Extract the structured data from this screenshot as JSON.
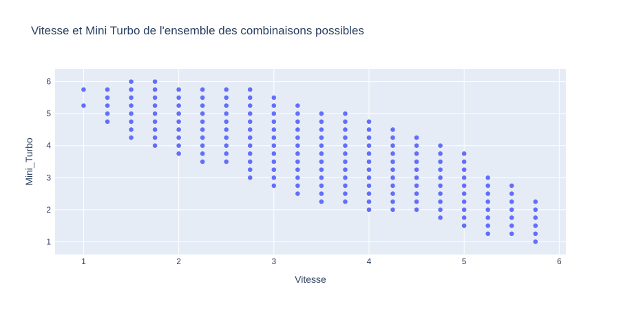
{
  "colors": {
    "plot_background": "#e5ecf6",
    "grid": "#ffffff",
    "marker": "#636efa",
    "text": "#2a3f5f",
    "title": "#2a3f5f"
  },
  "chart_data": {
    "type": "scatter",
    "title": "Vitesse et Mini Turbo de l'ensemble des combinaisons possibles",
    "xlabel": "Vitesse",
    "ylabel": "Mini_Turbo",
    "xlim": [
      0.7,
      6.07
    ],
    "ylim": [
      0.6,
      6.4
    ],
    "xticks": [
      1,
      2,
      3,
      4,
      5,
      6
    ],
    "yticks": [
      1,
      2,
      3,
      4,
      5,
      6
    ],
    "grid": true,
    "legend": "none",
    "marker_color": "#636efa",
    "columns": [
      {
        "x": 1,
        "y_min": 5.25,
        "y_max": 5.75,
        "y_values": [
          5.25,
          5.75
        ]
      },
      {
        "x": 1.25,
        "y_min": 4.75,
        "y_max": 5.75
      },
      {
        "x": 1.5,
        "y_min": 4.25,
        "y_max": 6
      },
      {
        "x": 1.75,
        "y_min": 4,
        "y_max": 6
      },
      {
        "x": 2,
        "y_min": 3.75,
        "y_max": 5.75
      },
      {
        "x": 2.25,
        "y_min": 3.5,
        "y_max": 5.75
      },
      {
        "x": 2.5,
        "y_min": 3.5,
        "y_max": 5.75
      },
      {
        "x": 2.75,
        "y_min": 3,
        "y_max": 5.75
      },
      {
        "x": 3,
        "y_min": 2.75,
        "y_max": 5.5
      },
      {
        "x": 3.25,
        "y_min": 2.5,
        "y_max": 5.25
      },
      {
        "x": 3.5,
        "y_min": 2.25,
        "y_max": 5
      },
      {
        "x": 3.75,
        "y_min": 2.25,
        "y_max": 5
      },
      {
        "x": 4,
        "y_min": 2,
        "y_max": 4.75
      },
      {
        "x": 4.25,
        "y_min": 2,
        "y_max": 4.5
      },
      {
        "x": 4.5,
        "y_min": 2,
        "y_max": 4.25
      },
      {
        "x": 4.75,
        "y_min": 1.75,
        "y_max": 4
      },
      {
        "x": 5,
        "y_min": 1.5,
        "y_max": 3.75
      },
      {
        "x": 5.25,
        "y_min": 1.25,
        "y_max": 3
      },
      {
        "x": 5.5,
        "y_min": 1.25,
        "y_max": 2.75
      },
      {
        "x": 5.75,
        "y_min": 1,
        "y_max": 2.25
      }
    ]
  }
}
